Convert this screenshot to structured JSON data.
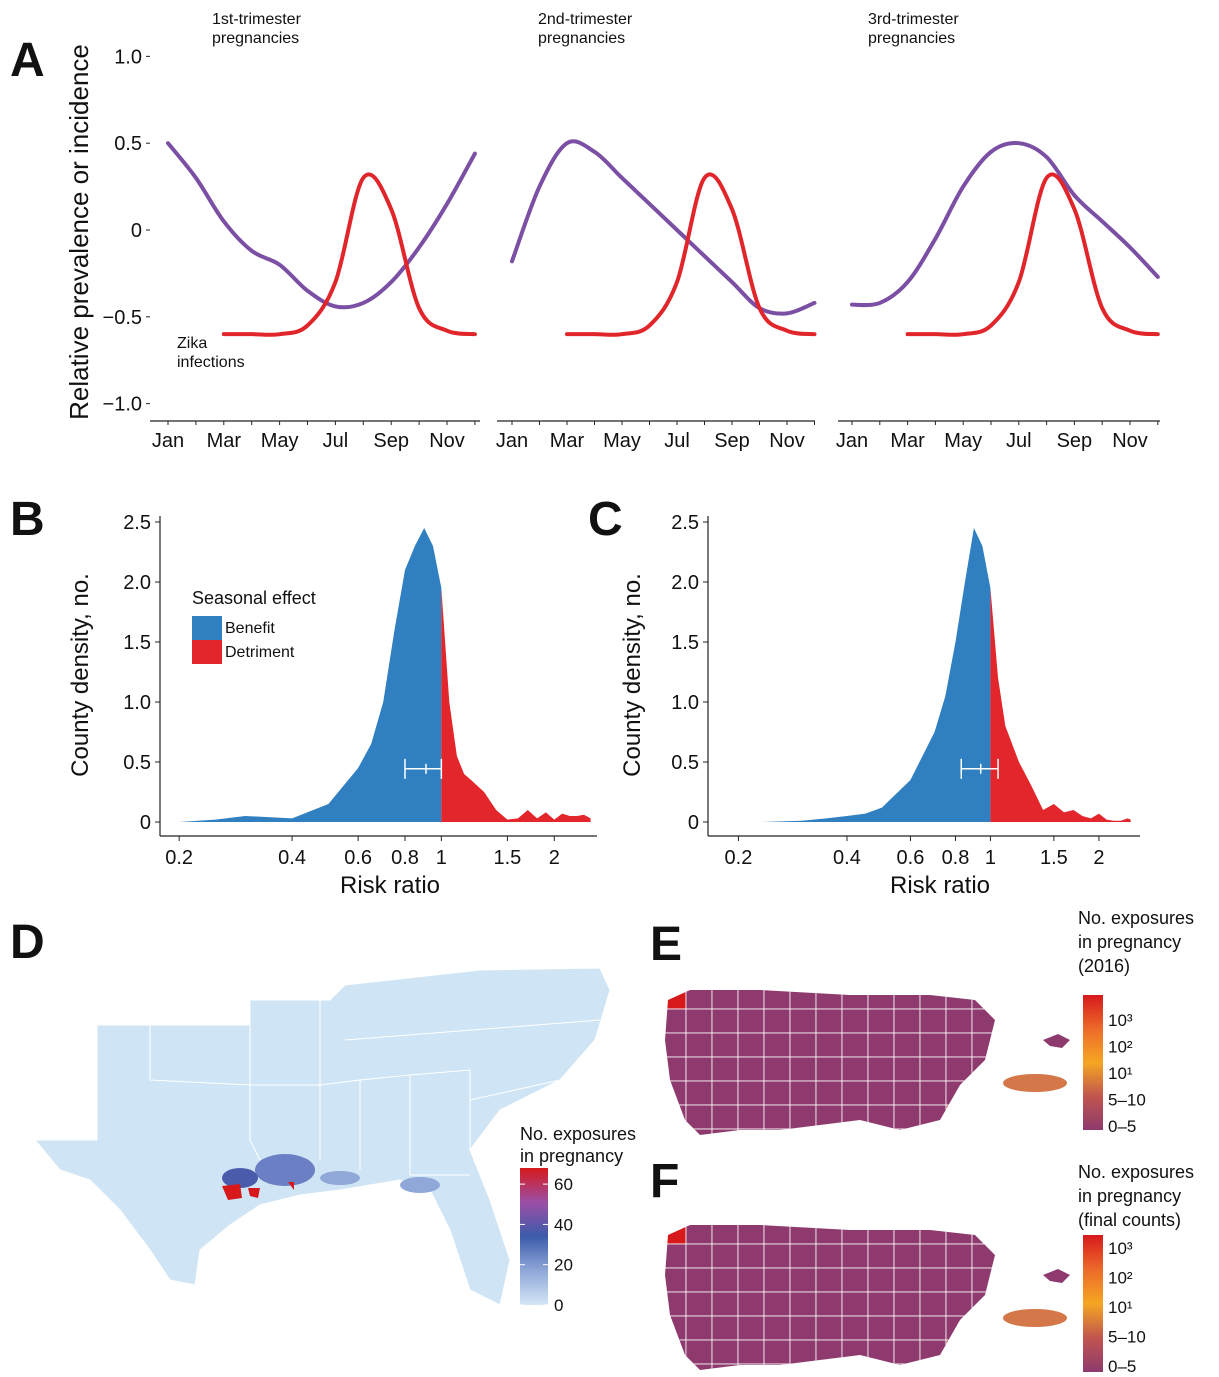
{
  "chart_data": [
    {
      "type": "line",
      "panel": "A",
      "title_lines": [
        "1st-trimester",
        "pregnancies"
      ],
      "ylabel": "Relative prevalence or incidence",
      "annotation_lines": [
        "Zika",
        "infections"
      ],
      "categories": [
        "Jan",
        null,
        "Mar",
        null,
        "May",
        null,
        "Jul",
        null,
        "Sep",
        null,
        "Nov",
        null
      ],
      "ylim": [
        -1.1,
        1.1
      ],
      "yticks": [
        {
          "value": 1,
          "label": "1.0"
        },
        0.5,
        0,
        {
          "value": -0.5,
          "label": "−0.5"
        },
        {
          "value": -1,
          "label": "−1.0"
        }
      ],
      "series": [
        {
          "color": "#7b4fa3",
          "values": [
            0.5,
            0.3,
            0.05,
            -0.12,
            -0.2,
            -0.35,
            -0.44,
            -0.42,
            -0.3,
            -0.1,
            0.15,
            0.44
          ]
        },
        {
          "color": "#e0262a",
          "values": [
            null,
            null,
            -0.6,
            -0.6,
            -0.6,
            -0.55,
            -0.3,
            0.3,
            0.12,
            -0.45,
            -0.58,
            -0.6
          ]
        }
      ]
    },
    {
      "type": "line",
      "title_lines": [
        "2nd-trimester",
        "pregnancies"
      ],
      "categories": [
        "Jan",
        null,
        "Mar",
        null,
        "May",
        null,
        "Jul",
        null,
        "Sep",
        null,
        "Nov",
        null
      ],
      "ylim": [
        -1.1,
        1.1
      ],
      "series": [
        {
          "color": "#7b4fa3",
          "values": [
            -0.18,
            0.25,
            0.5,
            0.45,
            0.3,
            0.15,
            0,
            -0.15,
            -0.3,
            -0.45,
            -0.48,
            -0.42
          ]
        },
        {
          "color": "#e0262a",
          "values": [
            null,
            null,
            -0.6,
            -0.6,
            -0.6,
            -0.55,
            -0.3,
            0.3,
            0.12,
            -0.45,
            -0.58,
            -0.6
          ]
        }
      ]
    },
    {
      "type": "line",
      "title_lines": [
        "3rd-trimester",
        "pregnancies"
      ],
      "categories": [
        "Jan",
        null,
        "Mar",
        null,
        "May",
        null,
        "Jul",
        null,
        "Sep",
        null,
        "Nov",
        null
      ],
      "ylim": [
        -1.1,
        1.1
      ],
      "series": [
        {
          "color": "#7b4fa3",
          "values": [
            -0.43,
            -0.42,
            -0.3,
            -0.05,
            0.25,
            0.45,
            0.5,
            0.42,
            0.2,
            0.05,
            -0.1,
            -0.27
          ]
        },
        {
          "color": "#e0262a",
          "values": [
            null,
            null,
            -0.6,
            -0.6,
            -0.6,
            -0.55,
            -0.3,
            0.3,
            0.12,
            -0.45,
            -0.58,
            -0.6
          ]
        }
      ]
    },
    {
      "type": "density",
      "panel": "B",
      "xlabel": "Risk ratio",
      "ylabel": "County density, no.",
      "xscale": "log",
      "xlim": [
        0.18,
        2.6
      ],
      "xticks": [
        0.2,
        0.4,
        0.6,
        0.8,
        1,
        1.5,
        2
      ],
      "ylim": [
        -0.1,
        2.55
      ],
      "yticks": [
        0,
        0.5,
        {
          "value": 1,
          "label": "1.0"
        },
        1.5,
        {
          "value": 2,
          "label": "2.0"
        },
        2.5
      ],
      "legend": "left",
      "legend_title": "Seasonal effect",
      "series": [
        {
          "name": "Benefit",
          "color": "#2f7fc1",
          "x": [
            0.2,
            0.25,
            0.3,
            0.35,
            0.4,
            0.5,
            0.6,
            0.65,
            0.7,
            0.75,
            0.8,
            0.85,
            0.9,
            0.95,
            1
          ],
          "values": [
            0,
            0.02,
            0.05,
            0.04,
            0.03,
            0.15,
            0.45,
            0.65,
            1.0,
            1.6,
            2.1,
            2.3,
            2.45,
            2.3,
            1.95
          ]
        },
        {
          "name": "Detriment",
          "color": "#e3262b",
          "x": [
            1,
            1.05,
            1.1,
            1.15,
            1.2,
            1.3,
            1.4,
            1.5,
            1.6,
            1.7,
            1.8,
            1.9,
            2,
            2.1,
            2.2,
            2.3,
            2.4,
            2.5
          ],
          "values": [
            1.95,
            1.0,
            0.55,
            0.4,
            0.35,
            0.25,
            0.1,
            0.02,
            0.03,
            0.1,
            0.03,
            0.08,
            0.02,
            0.07,
            0.05,
            0.05,
            0.06,
            0.03
          ]
        }
      ],
      "interval": {
        "estimate": 0.91,
        "lower": 0.8,
        "upper": 1.0
      }
    },
    {
      "type": "density",
      "panel": "C",
      "xlabel": "Risk ratio",
      "ylabel": "County density, no.",
      "xscale": "log",
      "xlim": [
        0.17,
        2.6
      ],
      "xticks": [
        0.2,
        0.4,
        0.6,
        0.8,
        1,
        1.5,
        2
      ],
      "ylim": [
        -0.1,
        2.55
      ],
      "yticks": [
        0,
        0.5,
        {
          "value": 1,
          "label": "1.0"
        },
        1.5,
        {
          "value": 2,
          "label": "2.0"
        },
        2.5
      ],
      "series": [
        {
          "color": "#2f7fc1",
          "x": [
            0.23,
            0.3,
            0.35,
            0.4,
            0.45,
            0.5,
            0.6,
            0.7,
            0.75,
            0.8,
            0.85,
            0.9,
            0.95,
            1
          ],
          "values": [
            0,
            0.01,
            0.03,
            0.05,
            0.07,
            0.12,
            0.35,
            0.75,
            1.05,
            1.5,
            2.0,
            2.45,
            2.3,
            1.95
          ]
        },
        {
          "color": "#e3262b",
          "x": [
            1,
            1.05,
            1.1,
            1.2,
            1.3,
            1.4,
            1.5,
            1.6,
            1.7,
            1.8,
            1.9,
            2,
            2.1,
            2.2,
            2.3,
            2.4,
            2.45
          ],
          "values": [
            1.95,
            1.2,
            0.8,
            0.5,
            0.3,
            0.1,
            0.15,
            0.08,
            0.1,
            0.05,
            0.03,
            0.07,
            0.02,
            0.01,
            0.01,
            0.03,
            0.02
          ]
        }
      ],
      "interval": {
        "estimate": 0.94,
        "lower": 0.83,
        "upper": 1.05
      }
    },
    {
      "type": "map",
      "panel": "D",
      "colorbar": {
        "title_lines": [
          "No. exposures",
          "in pregnancy"
        ],
        "lim": [
          0,
          68
        ],
        "ticks": [
          0,
          20,
          40,
          60
        ],
        "colors": [
          "#d7191c",
          "#9b4fa6",
          "#3c5bab",
          "#8fa8d8",
          "#d3e6f5"
        ]
      }
    },
    {
      "type": "map",
      "panel": "E",
      "colorbar": {
        "title_lines": [
          "No. exposures",
          "in pregnancy",
          "(2016)"
        ],
        "labels": [
          "10³",
          "10²",
          "10¹",
          "5–10",
          "0–5"
        ],
        "colors": [
          "#d7191c",
          "#ec6a2a",
          "#f5a623",
          "#c1554e",
          "#8e3a6e"
        ]
      }
    },
    {
      "type": "map",
      "panel": "F",
      "colorbar": {
        "title_lines": [
          "No. exposures",
          "in pregnancy",
          "(final counts)"
        ],
        "labels": [
          "10³",
          "10²",
          "10¹",
          "5–10",
          "0–5"
        ],
        "colors": [
          "#d7191c",
          "#ec6a2a",
          "#f5a623",
          "#c1554e",
          "#8e3a6e"
        ]
      }
    }
  ]
}
